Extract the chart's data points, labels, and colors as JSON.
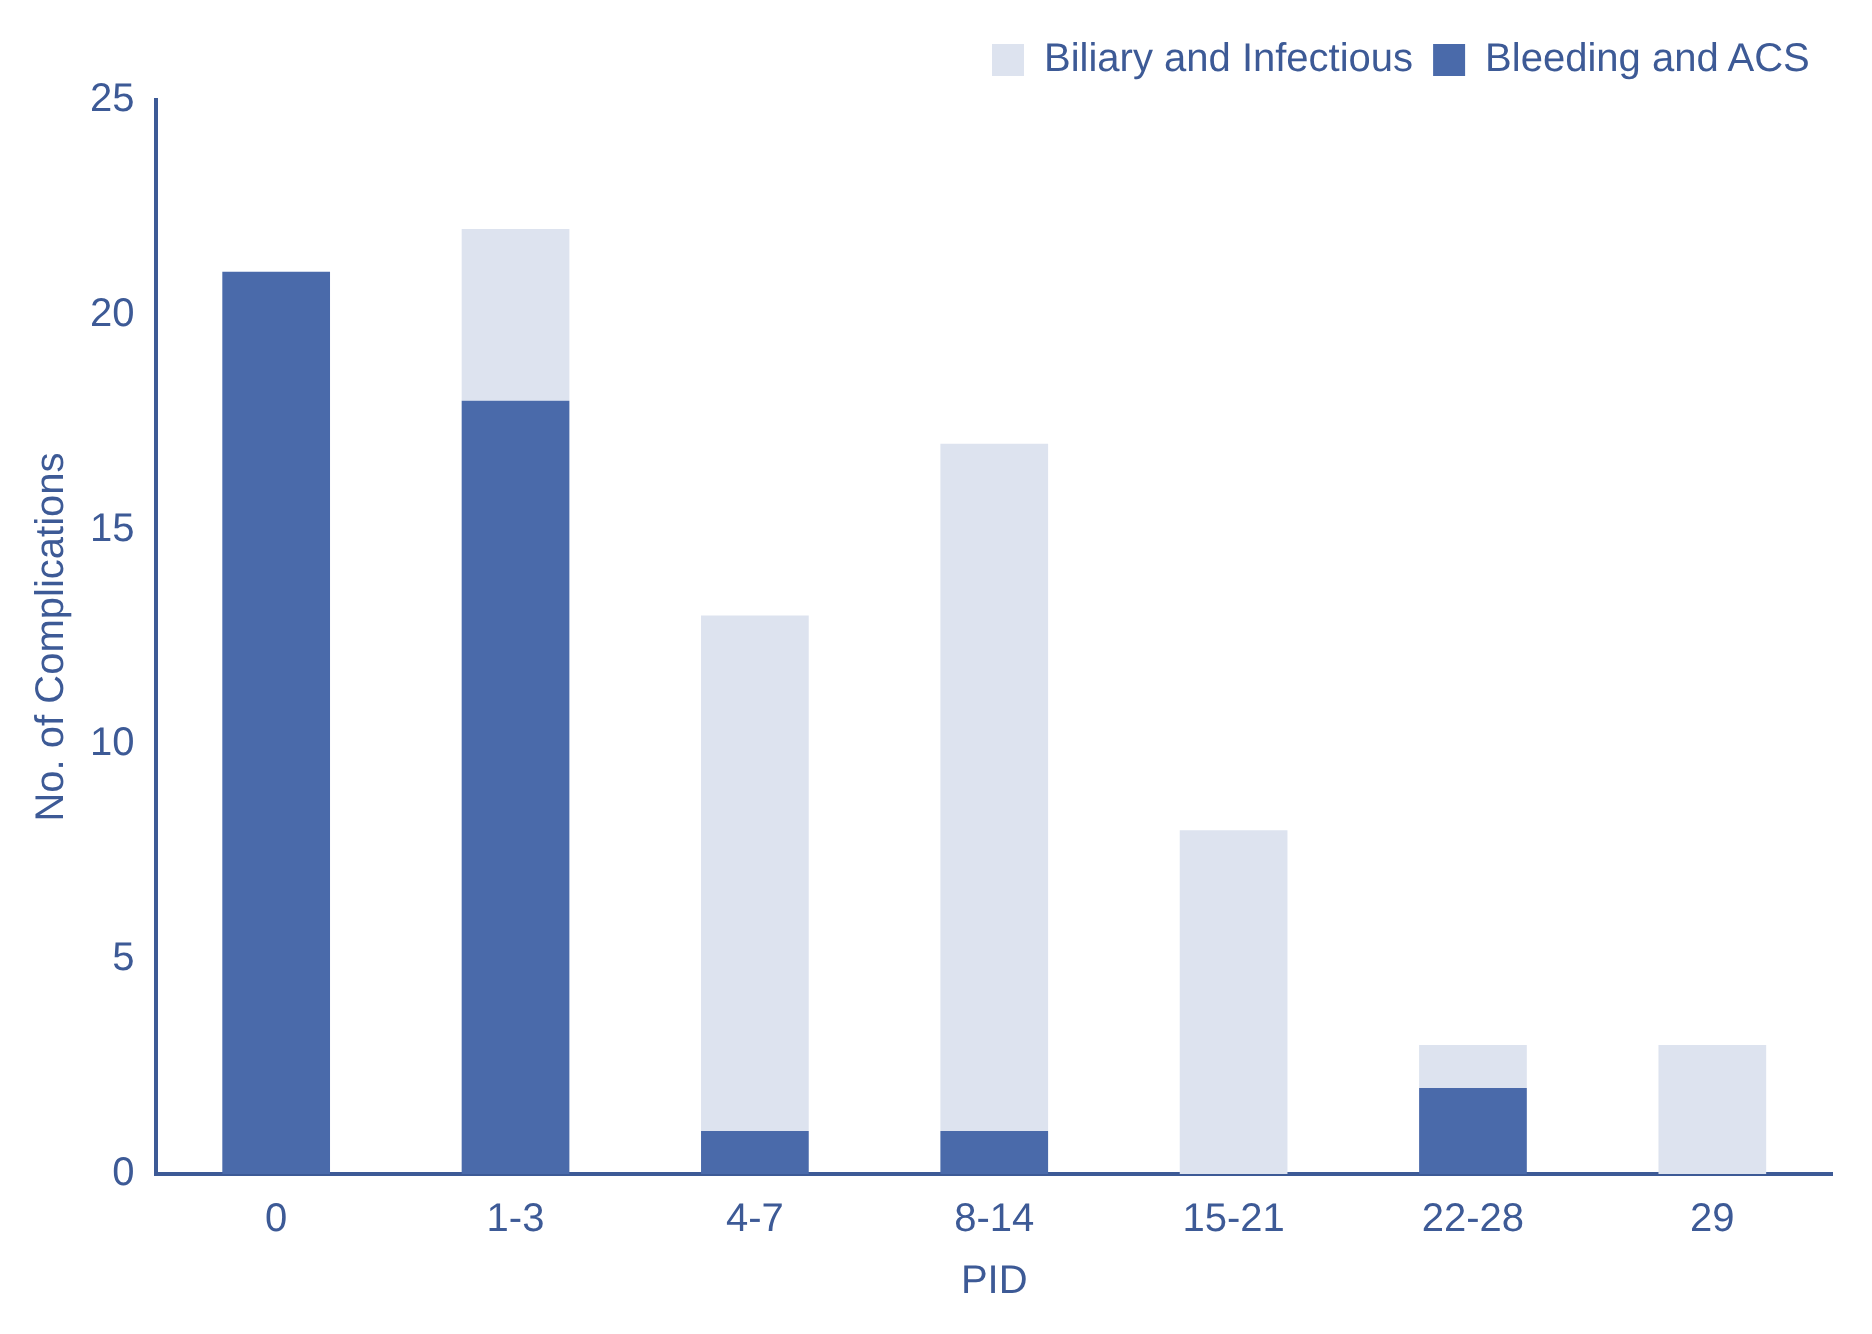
{
  "chart_data": {
    "type": "bar",
    "xlabel": "PID",
    "ylabel": "No. of Complications",
    "categories": [
      "0",
      "1-3",
      "4-7",
      "8-14",
      "15-21",
      "22-28",
      "29"
    ],
    "stacked": true,
    "series": [
      {
        "name": "Bleeding and ACS",
        "color": "#4a6aaa",
        "values": [
          21,
          18,
          1,
          1,
          0,
          2,
          0
        ]
      },
      {
        "name": "Biliary and Infectious",
        "color": "#dde3ef",
        "values": [
          0,
          4,
          12,
          16,
          8,
          1,
          3
        ]
      }
    ],
    "ylim": [
      0,
      25
    ],
    "yticks": [
      0,
      5,
      10,
      15,
      20,
      25
    ],
    "grid": false,
    "legend": "top right"
  }
}
